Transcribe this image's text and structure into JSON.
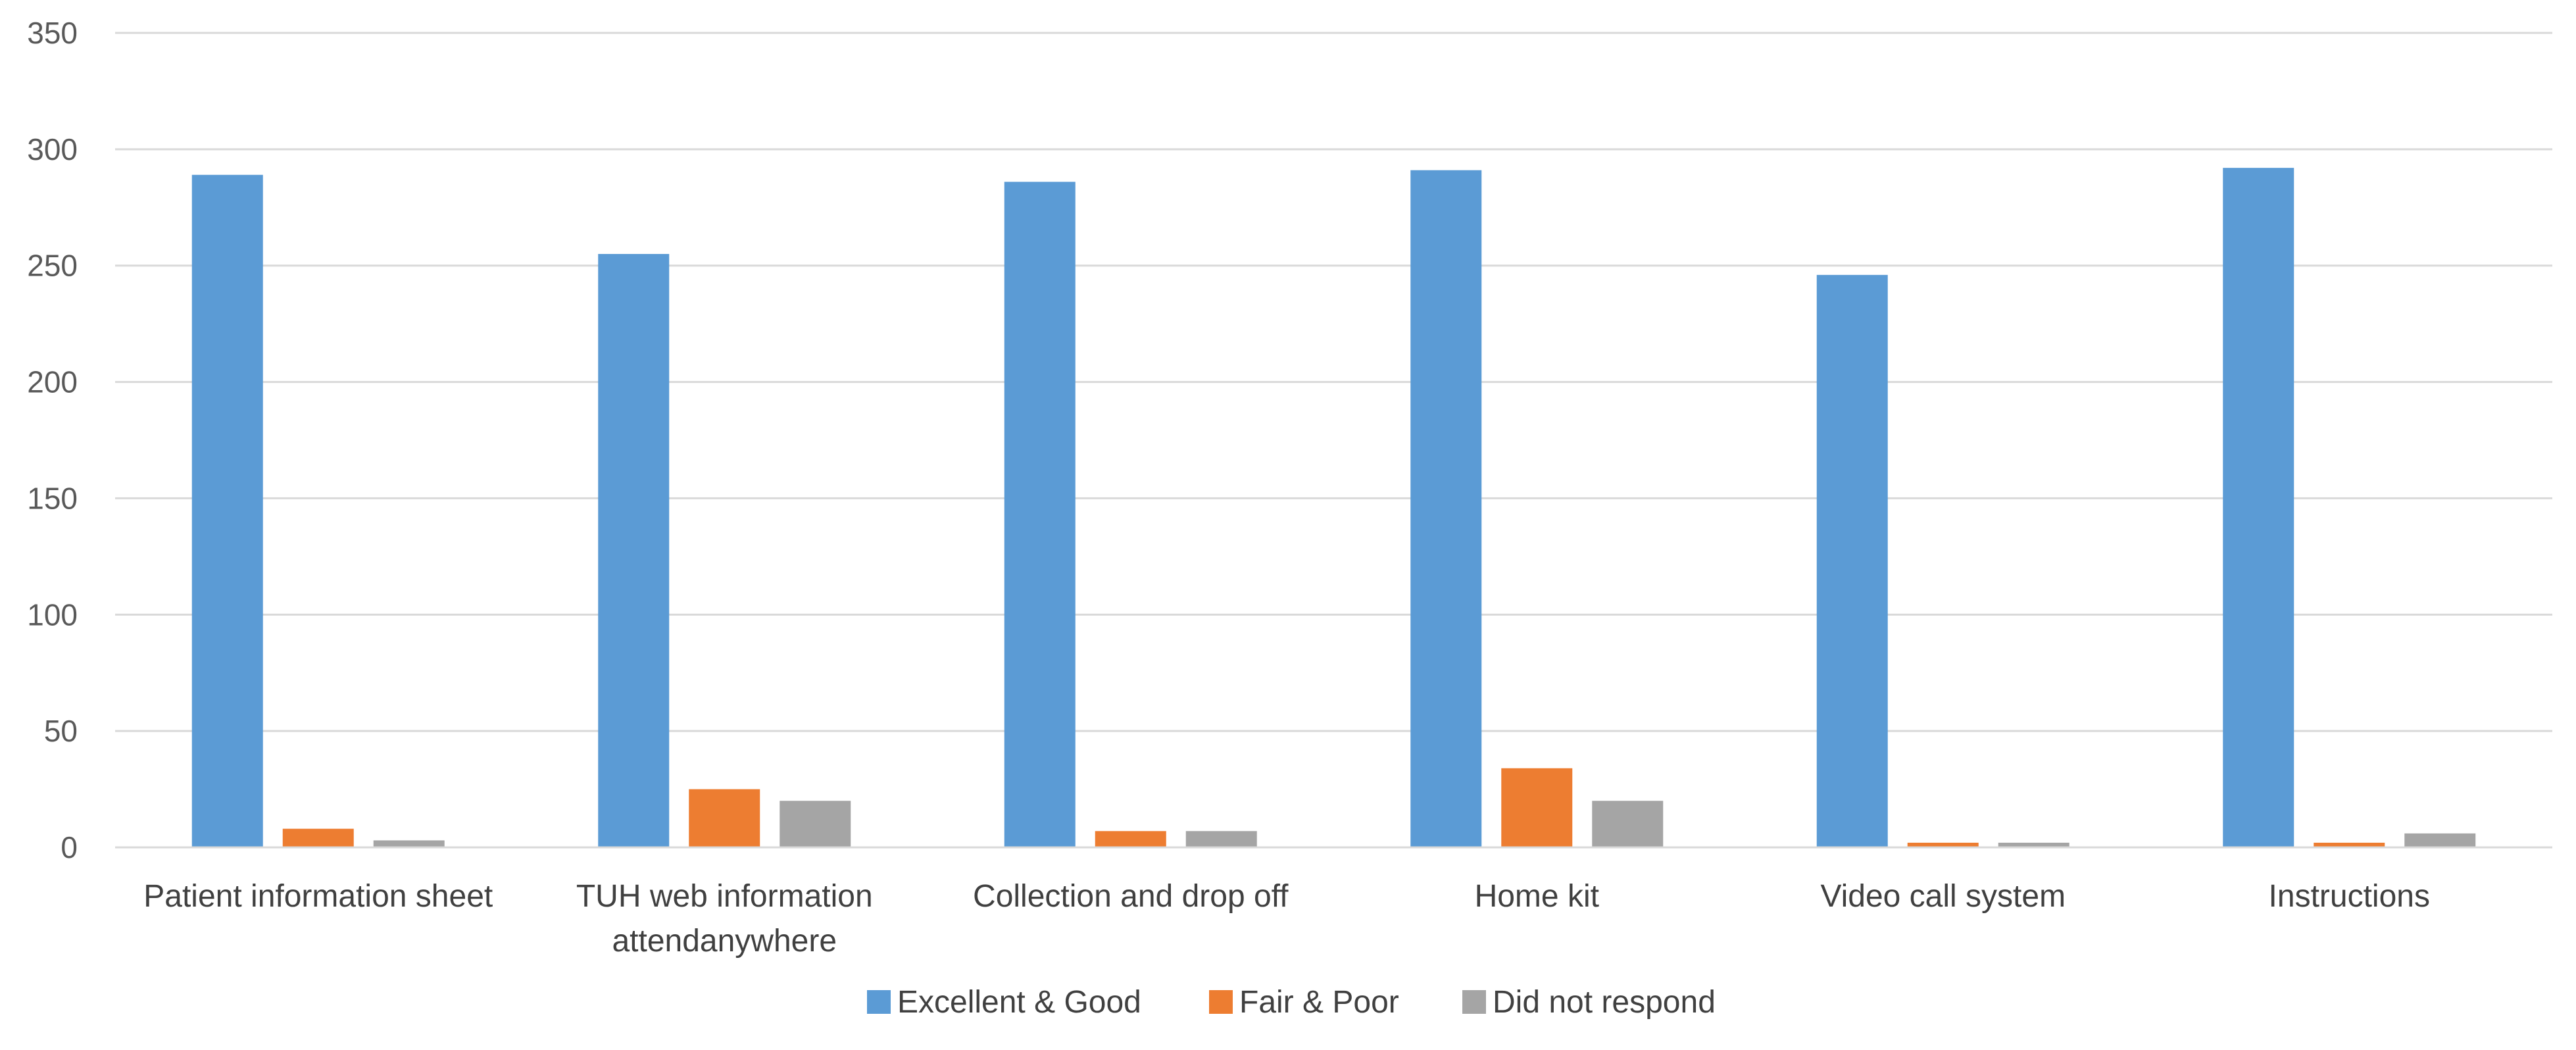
{
  "chart_data": {
    "type": "bar",
    "title": "",
    "xlabel": "",
    "ylabel": "",
    "categories": [
      [
        "Patient information sheet"
      ],
      [
        "TUH web information",
        "attendanywhere"
      ],
      [
        "Collection and drop off"
      ],
      [
        "Home kit"
      ],
      [
        "Video call system"
      ],
      [
        "Instructions"
      ]
    ],
    "series": [
      {
        "name": "Excellent & Good",
        "color": "#5B9BD5",
        "values": [
          289,
          255,
          286,
          291,
          246,
          292
        ]
      },
      {
        "name": "Fair & Poor",
        "color": "#ED7D31",
        "values": [
          8,
          25,
          7,
          34,
          2,
          2
        ]
      },
      {
        "name": "Did not respond",
        "color": "#A5A5A5",
        "values": [
          3,
          20,
          7,
          20,
          2,
          6
        ]
      }
    ],
    "ylim": [
      0,
      350
    ],
    "yticks": [
      0,
      50,
      100,
      150,
      200,
      250,
      300,
      350
    ],
    "grid": true,
    "legend_position": "bottom"
  }
}
